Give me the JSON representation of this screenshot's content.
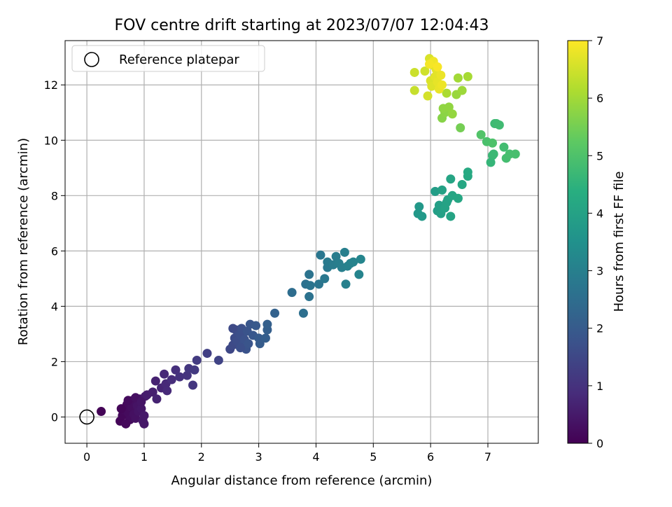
{
  "chart_data": {
    "type": "scatter",
    "title": "FOV centre drift starting at 2023/07/07 12:04:43",
    "xlabel": "Angular distance from reference (arcmin)",
    "ylabel": "Rotation from reference (arcmin)",
    "xlim": [
      -0.38,
      7.88
    ],
    "ylim": [
      -0.95,
      13.6
    ],
    "xticks": [
      0,
      1,
      2,
      3,
      4,
      5,
      6,
      7
    ],
    "yticks": [
      0,
      2,
      4,
      6,
      8,
      10,
      12
    ],
    "grid": true,
    "legend": {
      "placement": "top-left",
      "entries": [
        "Reference platepar"
      ]
    },
    "reference_point": {
      "x": 0,
      "y": 0,
      "marker": "open-circle"
    },
    "colorbar": {
      "label": "Hours from first FF file",
      "colormap": "viridis",
      "range": [
        0,
        7
      ],
      "ticks": [
        0,
        1,
        2,
        3,
        4,
        5,
        6,
        7
      ]
    },
    "points": [
      [
        0.25,
        0.2,
        0.05
      ],
      [
        0.58,
        -0.15,
        0.1
      ],
      [
        0.62,
        0.05,
        0.12
      ],
      [
        0.65,
        0.25,
        0.15
      ],
      [
        0.7,
        0.45,
        0.18
      ],
      [
        0.72,
        0.15,
        0.2
      ],
      [
        0.75,
        -0.1,
        0.22
      ],
      [
        0.78,
        0.35,
        0.25
      ],
      [
        0.8,
        0.6,
        0.28
      ],
      [
        0.82,
        0.1,
        0.3
      ],
      [
        0.85,
        -0.05,
        0.32
      ],
      [
        0.88,
        0.4,
        0.35
      ],
      [
        0.9,
        0.2,
        0.38
      ],
      [
        0.92,
        0.65,
        0.4
      ],
      [
        0.95,
        0.3,
        0.42
      ],
      [
        0.98,
        -0.15,
        0.45
      ],
      [
        1.0,
        0.05,
        0.48
      ],
      [
        1.02,
        0.75,
        0.5
      ],
      [
        0.68,
        -0.25,
        0.15
      ],
      [
        0.6,
        0.3,
        0.1
      ],
      [
        0.72,
        0.6,
        0.2
      ],
      [
        0.85,
        0.7,
        0.3
      ],
      [
        0.95,
        0.55,
        0.4
      ],
      [
        1.0,
        -0.25,
        0.45
      ],
      [
        1.05,
        0.8,
        0.55
      ],
      [
        1.15,
        0.9,
        0.6
      ],
      [
        1.2,
        1.3,
        0.65
      ],
      [
        1.22,
        0.65,
        0.68
      ],
      [
        1.3,
        1.05,
        0.72
      ],
      [
        1.35,
        1.55,
        0.78
      ],
      [
        1.38,
        1.2,
        0.8
      ],
      [
        1.4,
        0.95,
        0.82
      ],
      [
        1.48,
        1.35,
        0.9
      ],
      [
        1.55,
        1.7,
        0.95
      ],
      [
        1.62,
        1.45,
        1.0
      ],
      [
        1.75,
        1.5,
        1.05
      ],
      [
        1.78,
        1.75,
        1.1
      ],
      [
        1.85,
        1.15,
        1.12
      ],
      [
        1.88,
        1.7,
        1.15
      ],
      [
        1.92,
        2.05,
        1.2
      ],
      [
        2.1,
        2.3,
        1.3
      ],
      [
        2.3,
        2.05,
        1.4
      ],
      [
        2.5,
        2.45,
        1.5
      ],
      [
        2.55,
        2.6,
        1.55
      ],
      [
        2.58,
        2.85,
        1.58
      ],
      [
        2.6,
        3.15,
        1.6
      ],
      [
        2.62,
        2.75,
        1.62
      ],
      [
        2.65,
        3.05,
        1.65
      ],
      [
        2.68,
        2.95,
        1.68
      ],
      [
        2.7,
        3.2,
        1.7
      ],
      [
        2.72,
        2.6,
        1.72
      ],
      [
        2.75,
        2.8,
        1.75
      ],
      [
        2.78,
        2.45,
        1.78
      ],
      [
        2.8,
        3.1,
        1.8
      ],
      [
        2.82,
        2.65,
        1.82
      ],
      [
        2.85,
        3.35,
        1.85
      ],
      [
        2.9,
        2.95,
        1.9
      ],
      [
        2.95,
        3.3,
        1.95
      ],
      [
        3.0,
        2.85,
        2.0
      ],
      [
        3.02,
        2.65,
        2.02
      ],
      [
        3.12,
        2.85,
        2.08
      ],
      [
        3.15,
        3.15,
        2.1
      ],
      [
        3.15,
        3.35,
        2.12
      ],
      [
        3.28,
        3.75,
        2.2
      ],
      [
        2.55,
        3.2,
        1.55
      ],
      [
        2.68,
        2.5,
        1.68
      ],
      [
        3.58,
        4.5,
        2.5
      ],
      [
        3.78,
        3.75,
        2.55
      ],
      [
        3.82,
        4.8,
        2.6
      ],
      [
        3.88,
        4.35,
        2.62
      ],
      [
        3.88,
        5.15,
        2.65
      ],
      [
        3.9,
        4.75,
        2.68
      ],
      [
        4.05,
        4.8,
        2.72
      ],
      [
        4.08,
        5.85,
        2.75
      ],
      [
        4.15,
        5.0,
        2.8
      ],
      [
        4.2,
        5.4,
        2.82
      ],
      [
        4.2,
        5.6,
        2.85
      ],
      [
        4.3,
        5.5,
        2.9
      ],
      [
        4.35,
        5.8,
        2.92
      ],
      [
        4.4,
        5.55,
        2.95
      ],
      [
        4.45,
        5.4,
        2.98
      ],
      [
        4.5,
        5.95,
        3.0
      ],
      [
        4.52,
        4.8,
        3.02
      ],
      [
        4.55,
        5.45,
        3.05
      ],
      [
        4.6,
        5.55,
        3.08
      ],
      [
        4.65,
        5.6,
        3.1
      ],
      [
        4.75,
        5.15,
        3.12
      ],
      [
        4.78,
        5.7,
        3.15
      ],
      [
        5.78,
        7.35,
        3.7
      ],
      [
        5.8,
        7.6,
        3.72
      ],
      [
        5.85,
        7.25,
        3.75
      ],
      [
        6.08,
        8.15,
        3.85
      ],
      [
        6.12,
        7.45,
        3.9
      ],
      [
        6.15,
        7.65,
        3.92
      ],
      [
        6.18,
        7.35,
        3.95
      ],
      [
        6.2,
        8.2,
        3.98
      ],
      [
        6.25,
        7.55,
        4.0
      ],
      [
        6.3,
        7.85,
        4.02
      ],
      [
        6.35,
        7.25,
        4.05
      ],
      [
        6.35,
        8.6,
        4.08
      ],
      [
        6.38,
        8.0,
        4.1
      ],
      [
        6.48,
        7.9,
        4.12
      ],
      [
        6.55,
        8.4,
        4.15
      ],
      [
        6.65,
        8.7,
        4.2
      ],
      [
        6.65,
        8.85,
        4.22
      ],
      [
        6.28,
        7.75,
        4.0
      ],
      [
        7.05,
        9.2,
        4.6
      ],
      [
        7.08,
        9.45,
        4.65
      ],
      [
        7.1,
        9.5,
        4.7
      ],
      [
        7.12,
        10.6,
        4.72
      ],
      [
        7.15,
        10.6,
        4.75
      ],
      [
        7.2,
        10.55,
        4.78
      ],
      [
        7.28,
        9.75,
        4.82
      ],
      [
        7.32,
        9.35,
        4.85
      ],
      [
        7.38,
        9.5,
        4.88
      ],
      [
        7.48,
        9.5,
        4.9
      ],
      [
        6.98,
        9.95,
        4.95
      ],
      [
        7.08,
        9.9,
        4.98
      ],
      [
        6.88,
        10.2,
        5.05
      ],
      [
        6.52,
        10.45,
        5.5
      ],
      [
        6.2,
        10.8,
        5.7
      ],
      [
        6.25,
        11.0,
        5.75
      ],
      [
        6.22,
        11.15,
        5.8
      ],
      [
        6.32,
        11.2,
        5.82
      ],
      [
        6.38,
        10.95,
        5.85
      ],
      [
        6.45,
        11.65,
        5.9
      ],
      [
        6.55,
        11.8,
        5.95
      ],
      [
        6.48,
        12.25,
        6.0
      ],
      [
        6.65,
        12.3,
        6.05
      ],
      [
        6.28,
        11.7,
        6.1
      ],
      [
        5.72,
        11.8,
        6.4
      ],
      [
        5.72,
        12.45,
        6.45
      ],
      [
        5.9,
        12.5,
        6.5
      ],
      [
        5.95,
        11.6,
        6.55
      ],
      [
        5.98,
        12.95,
        6.6
      ],
      [
        6.0,
        12.15,
        6.62
      ],
      [
        6.02,
        11.95,
        6.65
      ],
      [
        6.05,
        12.7,
        6.68
      ],
      [
        6.08,
        12.3,
        6.7
      ],
      [
        6.1,
        12.55,
        6.72
      ],
      [
        6.12,
        12.1,
        6.75
      ],
      [
        6.15,
        11.85,
        6.78
      ],
      [
        6.18,
        12.35,
        6.8
      ],
      [
        6.2,
        12.0,
        6.82
      ],
      [
        6.05,
        12.85,
        6.85
      ],
      [
        5.98,
        12.75,
        6.9
      ],
      [
        6.12,
        12.65,
        6.95
      ]
    ]
  }
}
